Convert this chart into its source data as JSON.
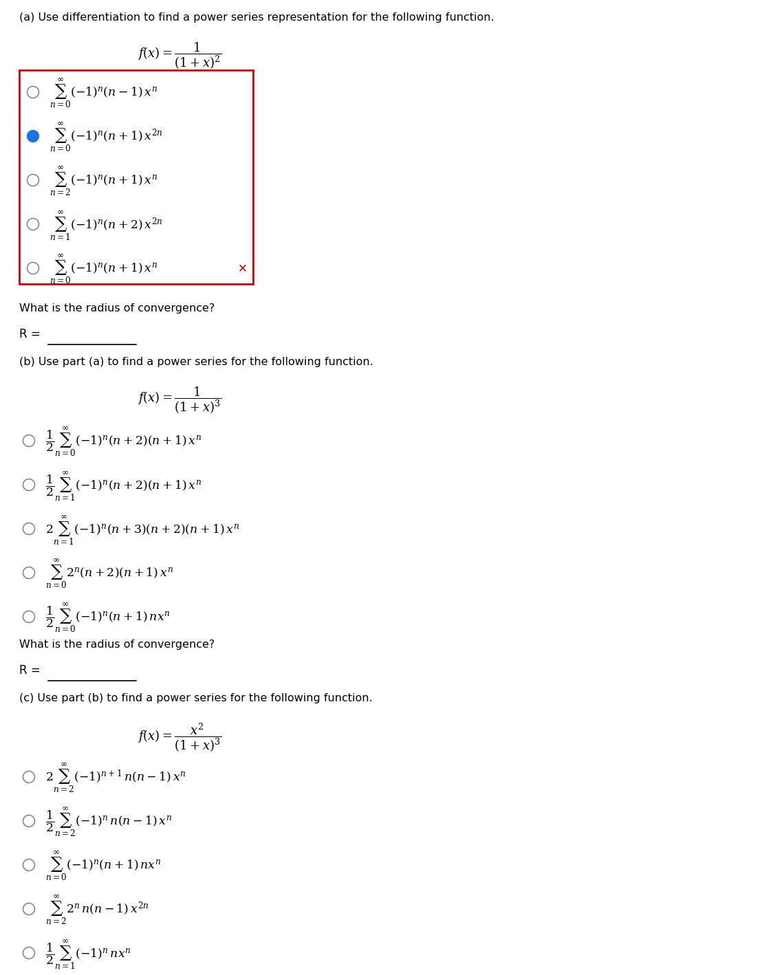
{
  "bg_color": "#ffffff",
  "text_color": "#000000",
  "part_a": {
    "header": "(a) Use differentiation to find a power series representation for the following function.",
    "function_latex": "f(x) = \\dfrac{1}{(1+x)^2}",
    "options": [
      {
        "latex": "\\sum_{n=0}^{\\infty}(-1)^n(n-1)\\,x^n",
        "selected": false
      },
      {
        "latex": "\\sum_{n=0}^{\\infty}(-1)^n(n+1)\\,x^{2n}",
        "selected": true
      },
      {
        "latex": "\\sum_{n=2}^{\\infty}(-1)^n(n+1)\\,x^n",
        "selected": false
      },
      {
        "latex": "\\sum_{n=1}^{\\infty}(-1)^n(n+2)\\,x^{2n}",
        "selected": false
      },
      {
        "latex": "\\sum_{n=0}^{\\infty}(-1)^n(n+1)\\,x^n",
        "selected": false
      }
    ],
    "radius_label": "What is the radius of convergence?",
    "R_label": "R ="
  },
  "part_b": {
    "header": "(b) Use part (a) to find a power series for the following function.",
    "function_latex": "f(x) = \\dfrac{1}{(1+x)^3}",
    "options": [
      {
        "latex": "\\dfrac{1}{2}\\sum_{n=0}^{\\infty}(-1)^n(n+2)(n+1)\\,x^n",
        "selected": false
      },
      {
        "latex": "\\dfrac{1}{2}\\sum_{n=1}^{\\infty}(-1)^n(n+2)(n+1)\\,x^n",
        "selected": false
      },
      {
        "latex": "2\\sum_{n=1}^{\\infty}(-1)^n(n+3)(n+2)(n+1)\\,x^n",
        "selected": false
      },
      {
        "latex": "\\sum_{n=0}^{\\infty}2^n(n+2)(n+1)\\,x^n",
        "selected": false
      },
      {
        "latex": "\\dfrac{1}{2}\\sum_{n=0}^{\\infty}(-1)^n(n+1)\\,nx^n",
        "selected": false
      }
    ],
    "radius_label": "What is the radius of convergence?",
    "R_label": "R ="
  },
  "part_c": {
    "header": "(c) Use part (b) to find a power series for the following function.",
    "function_latex": "f(x) = \\dfrac{x^2}{(1+x)^3}",
    "options": [
      {
        "latex": "2\\sum_{n=2}^{\\infty}(-1)^{n+1}\\,n(n-1)\\,x^n",
        "selected": false
      },
      {
        "latex": "\\dfrac{1}{2}\\sum_{n=2}^{\\infty}(-1)^n\\,n(n-1)\\,x^n",
        "selected": false
      },
      {
        "latex": "\\sum_{n=0}^{\\infty}(-1)^n(n+1)\\,nx^n",
        "selected": false
      },
      {
        "latex": "\\sum_{n=2}^{\\infty}2^n\\,n(n-1)\\,x^{2n}",
        "selected": false
      },
      {
        "latex": "\\dfrac{1}{2}\\sum_{n=1}^{\\infty}(-1)^n\\,nx^n",
        "selected": false
      }
    ],
    "radius_label": "What is the radius of convergence?",
    "R_label": "R ="
  },
  "selected_color": "#1a73e8",
  "radio_color": "#888888",
  "box_edge_color": "#cc0000",
  "x_color": "#cc0000",
  "lm": 0.28,
  "fig_w": 11.24,
  "fig_h": 14.18
}
